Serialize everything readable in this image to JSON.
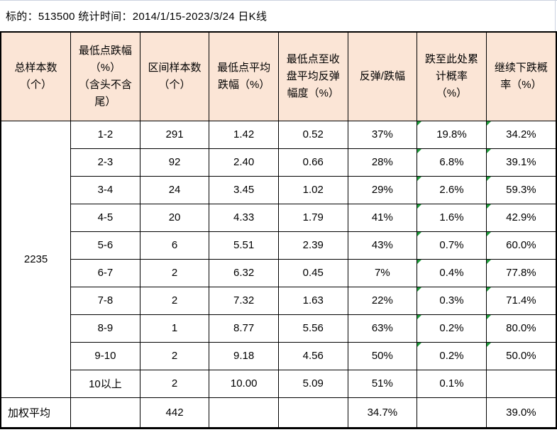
{
  "title": "标的：513500  统计时间：2014/1/15-2023/3/24 日K线",
  "colors": {
    "header_bg": "#FBE5D6",
    "border": "#000000",
    "triangle": "#1E9B3B",
    "gridline": "#CBD2E0"
  },
  "table": {
    "headers": [
      "总样本数\n（个）",
      "最低点跌幅\n（%）\n（含头不含\n尾）",
      "区间样本数\n（个）",
      "最低点平均\n跌幅（%）",
      "最低点至收\n盘平均反弹\n幅度（%）",
      "反弹/跌幅",
      "跌至此处累\n计概率\n（%）",
      "继续下跌概\n率（%）"
    ],
    "total_samples": "2235",
    "rows": [
      {
        "range": "1-2",
        "count": "291",
        "avg_drop": "1.42",
        "rebound": "0.52",
        "ratio": "37%",
        "cum_prob": "19.8%",
        "cont_prob": "34.2%",
        "flag": true
      },
      {
        "range": "2-3",
        "count": "92",
        "avg_drop": "2.40",
        "rebound": "0.66",
        "ratio": "28%",
        "cum_prob": "6.8%",
        "cont_prob": "39.1%",
        "flag": true
      },
      {
        "range": "3-4",
        "count": "24",
        "avg_drop": "3.45",
        "rebound": "1.02",
        "ratio": "29%",
        "cum_prob": "2.6%",
        "cont_prob": "59.3%",
        "flag": true
      },
      {
        "range": "4-5",
        "count": "20",
        "avg_drop": "4.33",
        "rebound": "1.79",
        "ratio": "41%",
        "cum_prob": "1.6%",
        "cont_prob": "42.9%",
        "flag": true
      },
      {
        "range": "5-6",
        "count": "6",
        "avg_drop": "5.51",
        "rebound": "2.39",
        "ratio": "43%",
        "cum_prob": "0.7%",
        "cont_prob": "60.0%",
        "flag": true
      },
      {
        "range": "6-7",
        "count": "2",
        "avg_drop": "6.32",
        "rebound": "0.45",
        "ratio": "7%",
        "cum_prob": "0.4%",
        "cont_prob": "77.8%",
        "flag": true
      },
      {
        "range": "7-8",
        "count": "2",
        "avg_drop": "7.32",
        "rebound": "1.63",
        "ratio": "22%",
        "cum_prob": "0.3%",
        "cont_prob": "71.4%",
        "flag": true
      },
      {
        "range": "8-9",
        "count": "1",
        "avg_drop": "8.77",
        "rebound": "5.56",
        "ratio": "63%",
        "cum_prob": "0.2%",
        "cont_prob": "80.0%",
        "flag": true
      },
      {
        "range": "9-10",
        "count": "2",
        "avg_drop": "9.18",
        "rebound": "4.56",
        "ratio": "50%",
        "cum_prob": "0.2%",
        "cont_prob": "50.0%",
        "flag": true
      },
      {
        "range": "10以上",
        "count": "2",
        "avg_drop": "10.00",
        "rebound": "5.09",
        "ratio": "51%",
        "cum_prob": "0.1%",
        "cont_prob": "",
        "flag": false
      }
    ],
    "footer": {
      "label": "加权平均",
      "count": "442",
      "ratio": "34.7%",
      "cont_prob": "39.0%"
    }
  }
}
